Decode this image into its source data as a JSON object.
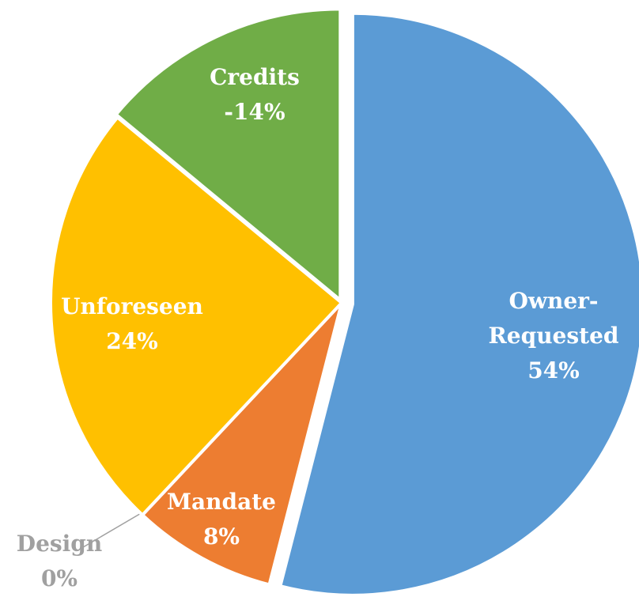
{
  "chart_data": {
    "type": "pie",
    "categories": [
      "Owner-Requested",
      "Mandate",
      "Design",
      "Unforeseen",
      "Credits"
    ],
    "values": [
      54,
      8,
      0,
      24,
      -14
    ],
    "value_labels": [
      "54%",
      "8%",
      "0%",
      "24%",
      "-14%"
    ],
    "colors": [
      "#5b9bd5",
      "#ed7d31",
      "#a5a5a5",
      "#ffc000",
      "#70ad47"
    ]
  }
}
